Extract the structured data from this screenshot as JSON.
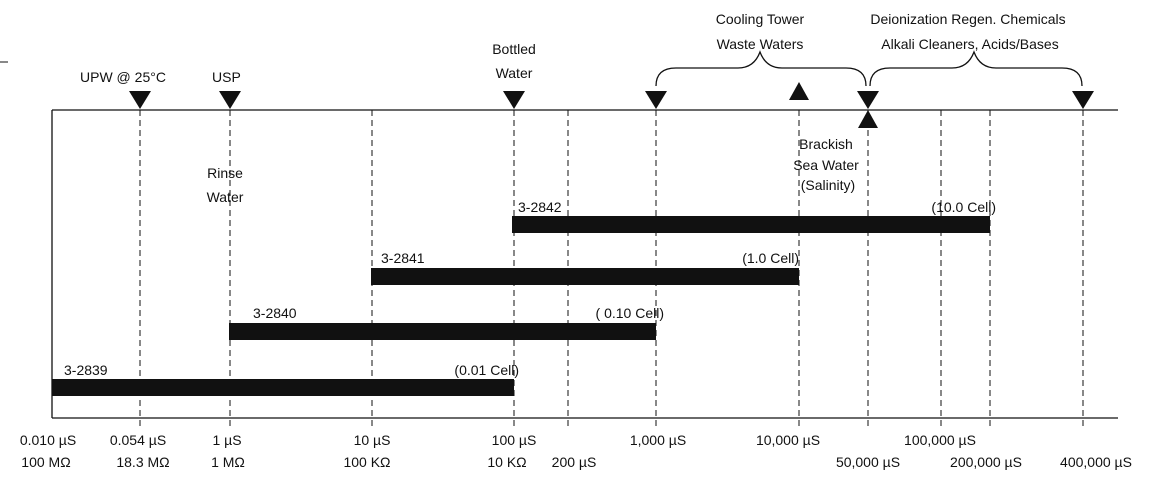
{
  "colors": {
    "ink": "#111111",
    "background": "#ffffff"
  },
  "top_labels": {
    "upw": "UPW @ 25°C",
    "usp": "USP",
    "bottled_l1": "Bottled",
    "bottled_l2": "Water",
    "cooling_l1": "Cooling Tower",
    "cooling_l2": "Waste Waters",
    "deion_l1": "Deionization Regen. Chemicals",
    "deion_l2": "Alkali Cleaners, Acids/Bases"
  },
  "inner_labels": {
    "rinse_l1": "Rinse",
    "rinse_l2": "Water",
    "brackish_l1": "Brackish",
    "brackish_l2": "Sea Water",
    "brackish_l3": "(Salinity)"
  },
  "ranges": [
    {
      "model": "3-2842",
      "cell": "(10.0 Cell)",
      "from": "100 µS",
      "to": "200,000 µS"
    },
    {
      "model": "3-2841",
      "cell": "(1.0 Cell)",
      "from": "10 µS",
      "to": "10,000 µS"
    },
    {
      "model": "3-2840",
      "cell": "( 0.10 Cell)",
      "from": "1 µS",
      "to": "1,000 µS"
    },
    {
      "model": "3-2839",
      "cell": "(0.01 Cell)",
      "from": "0.010 µS",
      "to": "100 µS"
    }
  ],
  "axis_labels": {
    "a1": "0.010 µS",
    "a1b": "100 MΩ",
    "a2": "0.054 µS",
    "a2b": "18.3 MΩ",
    "a3": "1 µS",
    "a3b": "1 MΩ",
    "a4": "10 µS",
    "a4b": "100 KΩ",
    "a5": "100 µS",
    "a5b": "10 KΩ",
    "a6": "200 µS",
    "a7": "1,000 µS",
    "a8": "10,000 µS",
    "a9": "100,000 µS",
    "a10": "50,000 µS",
    "a11": "200,000 µS",
    "a12": "400,000 µS"
  }
}
